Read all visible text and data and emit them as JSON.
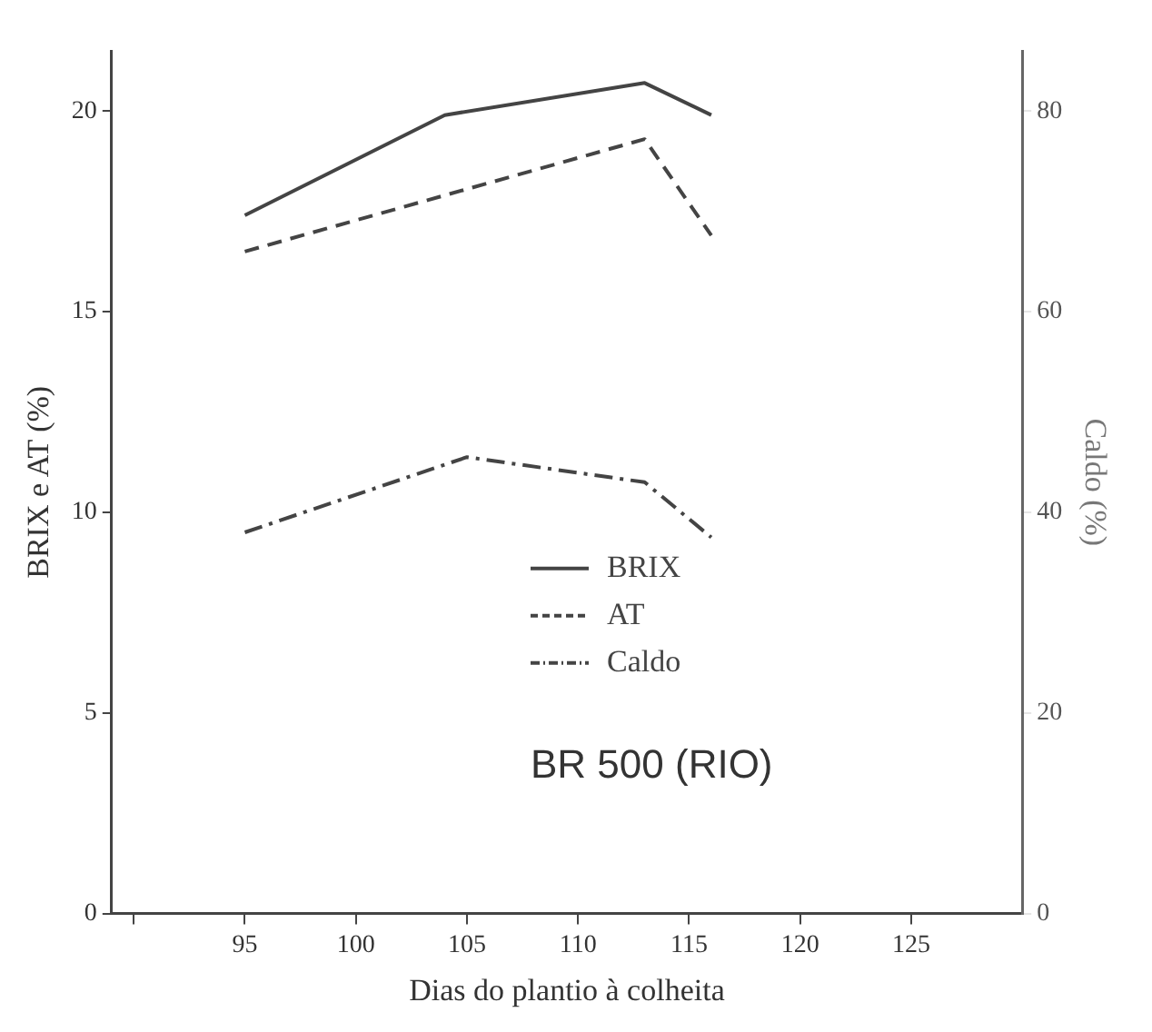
{
  "chart_data": {
    "type": "line",
    "xlabel": "Dias do plantio à colheita",
    "ylabel": "BRIX e AT (%)",
    "y2label": "Caldo (%)",
    "annotations": [
      "BR 500 (RIO)"
    ],
    "series": [
      {
        "name": "BRIX",
        "color": "#444444",
        "line_style": "solid",
        "x": [
          95,
          104,
          113,
          116
        ],
        "values": [
          17.4,
          19.9,
          20.7,
          19.9
        ]
      },
      {
        "name": "AT",
        "color": "#444444",
        "line_style": "dashed",
        "x": [
          95,
          113,
          116
        ],
        "values": [
          16.5,
          19.3,
          16.9
        ]
      },
      {
        "name": "Caldo",
        "color": "#444444",
        "line_style": "dotted",
        "axis": "y2",
        "x": [
          95,
          105,
          113,
          116
        ],
        "values": [
          38,
          45.5,
          43,
          37.5
        ]
      }
    ],
    "xlim": [
      89,
      130
    ],
    "xticks": [
      {
        "value": 90,
        "label": null
      },
      95,
      100,
      105,
      110,
      115,
      120,
      125
    ],
    "ylim": [
      0,
      21.5
    ],
    "yticks": [
      0,
      5,
      10,
      15,
      20
    ],
    "y2lim": [
      0,
      86
    ],
    "y2ticks": [
      0,
      20,
      40,
      60,
      80
    ],
    "grid": false,
    "legend": "center",
    "marker": "none"
  }
}
